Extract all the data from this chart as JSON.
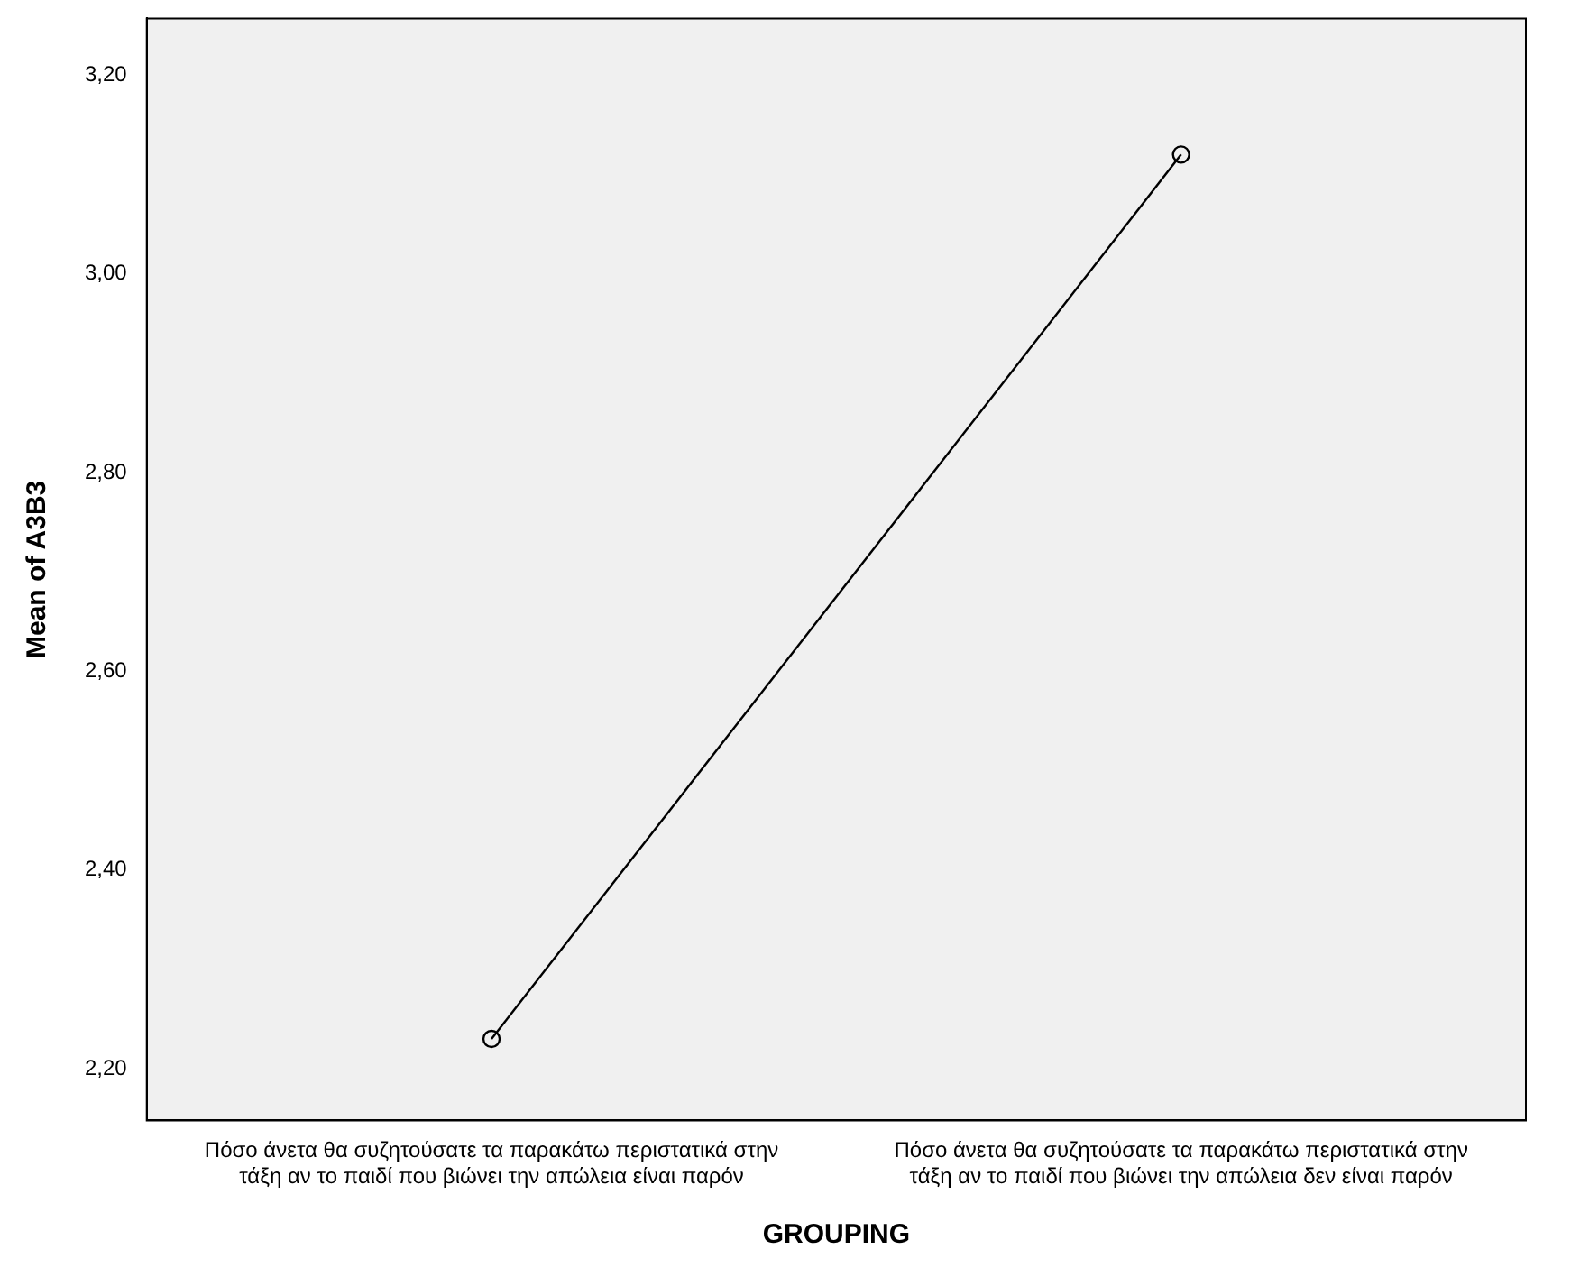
{
  "chart_data": {
    "type": "line",
    "xlabel": "GROUPING",
    "ylabel": "Mean of A3B3",
    "categories": [
      "Πόσο άνετα θα συζητούσατε τα παρακάτω περιστατικά στην τάξη αν το παιδί που βιώνει την απώλεια είναι παρόν",
      "Πόσο άνετα θα συζητούσατε τα παρακάτω περιστατικά στην τάξη αν το παιδί που βιώνει την απώλεια δεν είναι παρόν"
    ],
    "values": [
      2.23,
      3.12
    ],
    "color": "#000000",
    "marker": "circle",
    "line_style": "solid",
    "grid": false,
    "legend": false,
    "ylim": [
      2.148,
      3.257
    ],
    "yticks": [
      {
        "value": 2.2,
        "label": "2,20"
      },
      {
        "value": 2.4,
        "label": "2,40"
      },
      {
        "value": 2.6,
        "label": "2,60"
      },
      {
        "value": 2.8,
        "label": "2,80"
      },
      {
        "value": 3.0,
        "label": "3,00"
      },
      {
        "value": 3.2,
        "label": "3,20"
      }
    ]
  }
}
